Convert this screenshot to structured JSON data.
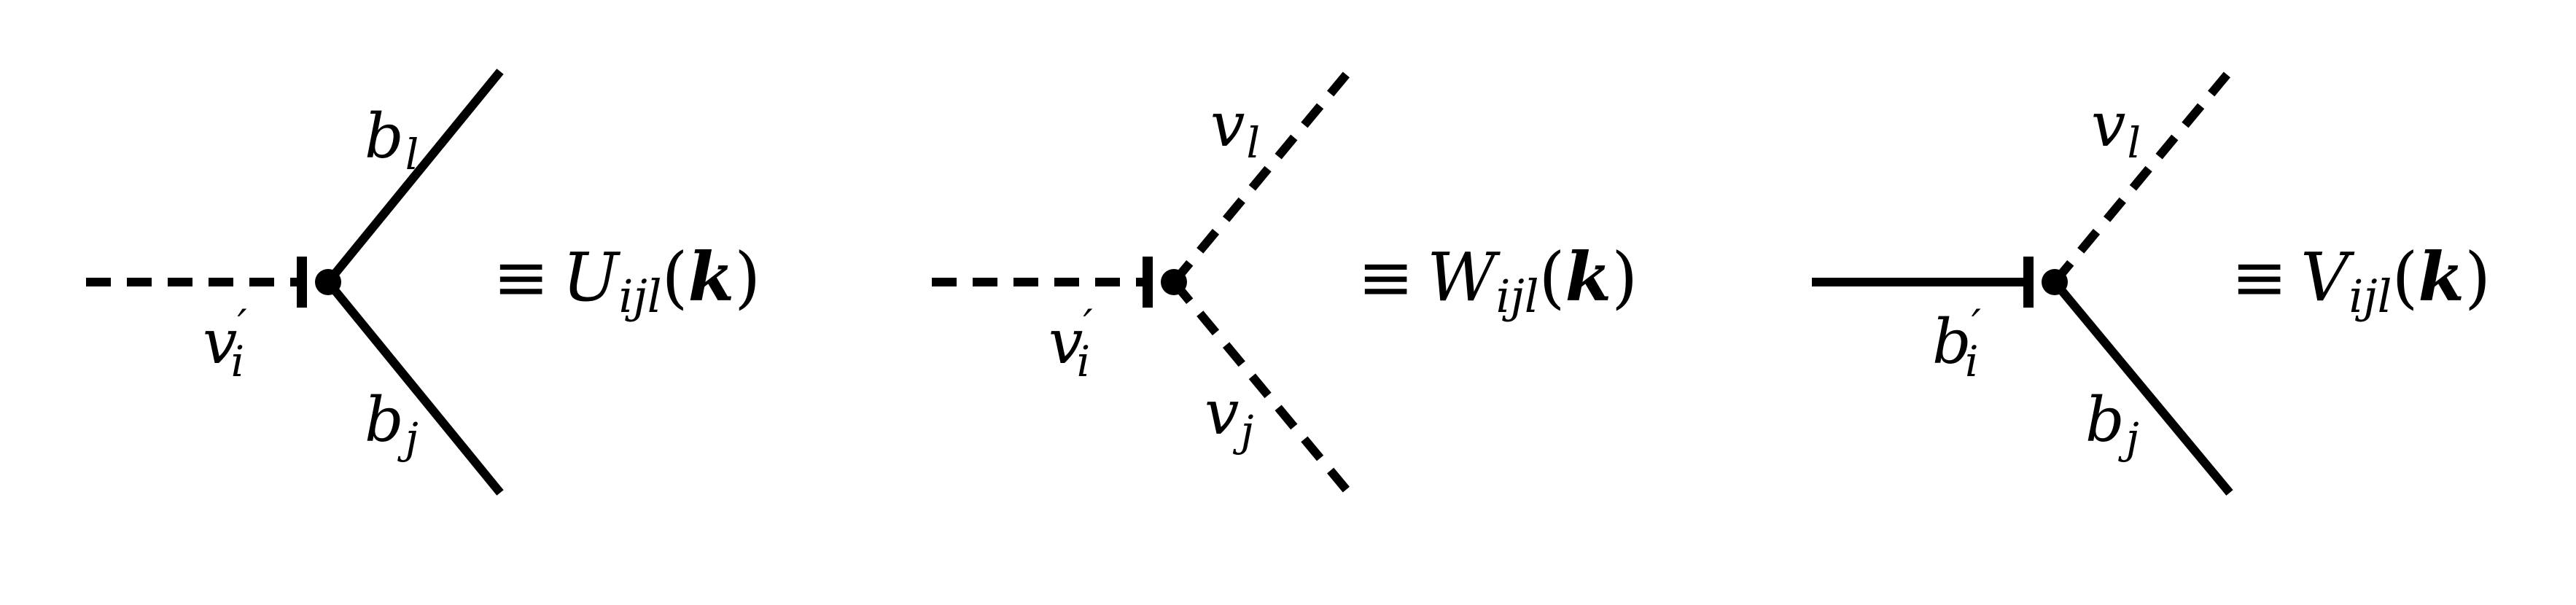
{
  "diagrams": [
    {
      "incoming": {
        "style": "dashed",
        "symbol": "v",
        "index": "i",
        "prime": "′"
      },
      "upper": {
        "style": "solid",
        "symbol": "b",
        "index": "l"
      },
      "lower": {
        "style": "solid",
        "symbol": "b",
        "index": "j"
      },
      "equiv": "≡",
      "vertex_symbol": "U",
      "vertex_indices": "ijl",
      "argument": "k"
    },
    {
      "incoming": {
        "style": "dashed",
        "symbol": "v",
        "index": "i",
        "prime": "′"
      },
      "upper": {
        "style": "dashed",
        "symbol": "v",
        "index": "l"
      },
      "lower": {
        "style": "dashed",
        "symbol": "v",
        "index": "j"
      },
      "equiv": "≡",
      "vertex_symbol": "W",
      "vertex_indices": "ijl",
      "argument": "k"
    },
    {
      "incoming": {
        "style": "solid",
        "symbol": "b",
        "index": "i",
        "prime": "′"
      },
      "upper": {
        "style": "dashed",
        "symbol": "v",
        "index": "l"
      },
      "lower": {
        "style": "solid",
        "symbol": "b",
        "index": "j"
      },
      "equiv": "≡",
      "vertex_symbol": "V",
      "vertex_indices": "ijl",
      "argument": "k"
    }
  ]
}
